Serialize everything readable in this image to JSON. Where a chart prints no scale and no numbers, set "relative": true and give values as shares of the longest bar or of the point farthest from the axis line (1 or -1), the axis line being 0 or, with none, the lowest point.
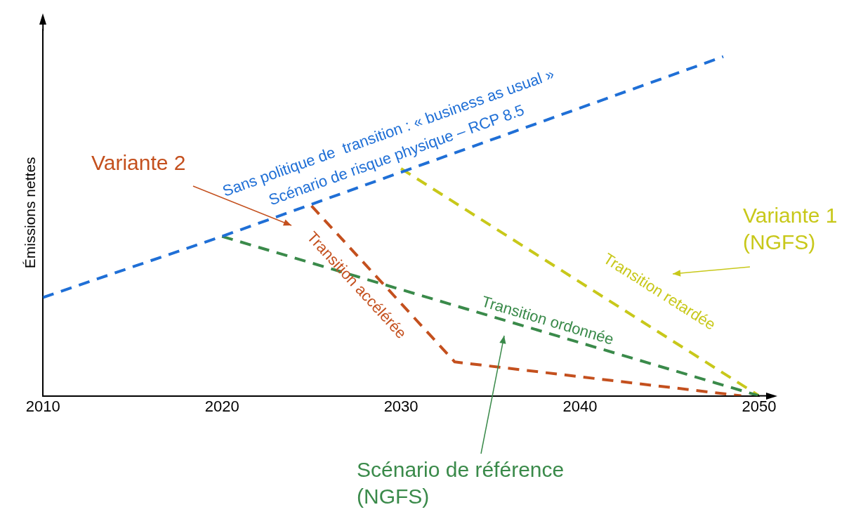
{
  "chart_data": {
    "type": "line",
    "relative": true,
    "ylabel": "Émissions nettes",
    "xlim": [
      2010,
      2050
    ],
    "xticks": [
      2010,
      2020,
      2030,
      2040,
      2050
    ],
    "grid": false,
    "legend": false,
    "line_style": "dashed",
    "series": [
      {
        "name": "Sans politique de  transition : « business as usual »\nScénario de risque physique – RCP 8.5",
        "color": "#1f6fd6",
        "x": [
          2010,
          2020,
          2048
        ],
        "values": [
          0.29,
          0.47,
          1
        ]
      },
      {
        "name": "Transition ordonnée",
        "color": "#3a8a4a",
        "x": [
          2020,
          2050
        ],
        "values": [
          0.47,
          0
        ]
      },
      {
        "name": "Transition accélérée",
        "color": "#c4501e",
        "x": [
          2025,
          2033,
          2049
        ],
        "values": [
          0.56,
          0.1,
          0
        ]
      },
      {
        "name": "Transition retardée",
        "color": "#c8c81a",
        "x": [
          2030,
          2050
        ],
        "values": [
          0.67,
          0
        ]
      }
    ],
    "annotations": [
      "Variante 2",
      "Variante 1 (NGFS)",
      "Scénario de référence (NGFS)"
    ]
  }
}
